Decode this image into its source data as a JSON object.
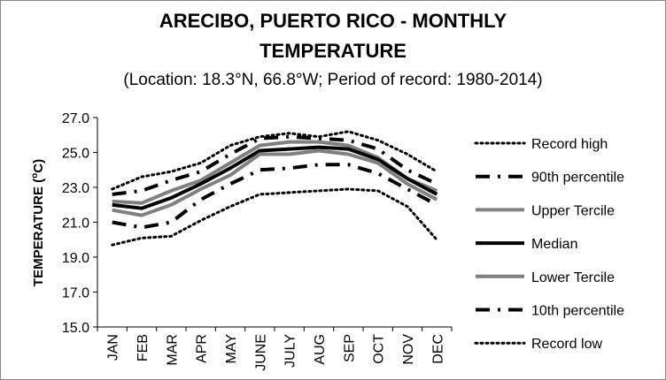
{
  "chart_data": {
    "type": "line",
    "title_line1": "ARECIBO, PUERTO RICO - MONTHLY",
    "title_line2": "TEMPERATURE",
    "subtitle": "(Location: 18.3°N, 66.8°W; Period of record: 1980-2014)",
    "ylabel_main": "TEMPERATURE (",
    "ylabel_sup": "o",
    "ylabel_end": "C)",
    "xlabel": "",
    "categories": [
      "JAN",
      "FEB",
      "MAR",
      "APR",
      "MAY",
      "JUNE",
      "JULY",
      "AUG",
      "SEP",
      "OCT",
      "NOV",
      "DEC"
    ],
    "ylim": [
      15.0,
      27.0
    ],
    "yticks": [
      "15.0",
      "17.0",
      "19.0",
      "21.0",
      "23.0",
      "25.0",
      "27.0"
    ],
    "grid": false,
    "legend_position": "right",
    "series": [
      {
        "name": "Record high",
        "style": "dotted",
        "color": "#000000",
        "values": [
          22.9,
          23.6,
          23.9,
          24.4,
          25.4,
          25.9,
          26.1,
          25.9,
          26.2,
          25.7,
          24.9,
          23.9
        ]
      },
      {
        "name": "90th percentile",
        "style": "longdashdot",
        "color": "#000000",
        "values": [
          22.6,
          22.8,
          23.4,
          23.9,
          24.9,
          25.8,
          25.9,
          25.8,
          25.7,
          25.2,
          24.0,
          23.2
        ]
      },
      {
        "name": "Upper Tercile",
        "style": "solid",
        "color": "#808080",
        "values": [
          22.2,
          22.1,
          22.8,
          23.4,
          24.4,
          25.4,
          25.6,
          25.6,
          25.4,
          24.7,
          23.5,
          22.8
        ]
      },
      {
        "name": "Median",
        "style": "solid",
        "color": "#000000",
        "values": [
          22.0,
          21.8,
          22.4,
          23.2,
          24.1,
          25.1,
          25.2,
          25.3,
          25.2,
          24.6,
          23.5,
          22.6
        ]
      },
      {
        "name": "Lower Tercile",
        "style": "solid",
        "color": "#808080",
        "values": [
          21.7,
          21.4,
          22.0,
          22.9,
          23.7,
          24.9,
          24.9,
          25.1,
          24.9,
          24.4,
          23.2,
          22.3
        ]
      },
      {
        "name": "10th percentile",
        "style": "longdashdot",
        "color": "#000000",
        "values": [
          21.0,
          20.7,
          21.0,
          22.3,
          23.2,
          24.0,
          24.1,
          24.3,
          24.3,
          23.8,
          22.9,
          22.0
        ]
      },
      {
        "name": "Record low",
        "style": "dotted",
        "color": "#000000",
        "values": [
          19.7,
          20.1,
          20.2,
          21.1,
          21.9,
          22.6,
          22.7,
          22.8,
          22.9,
          22.8,
          21.9,
          20.0
        ]
      }
    ]
  }
}
